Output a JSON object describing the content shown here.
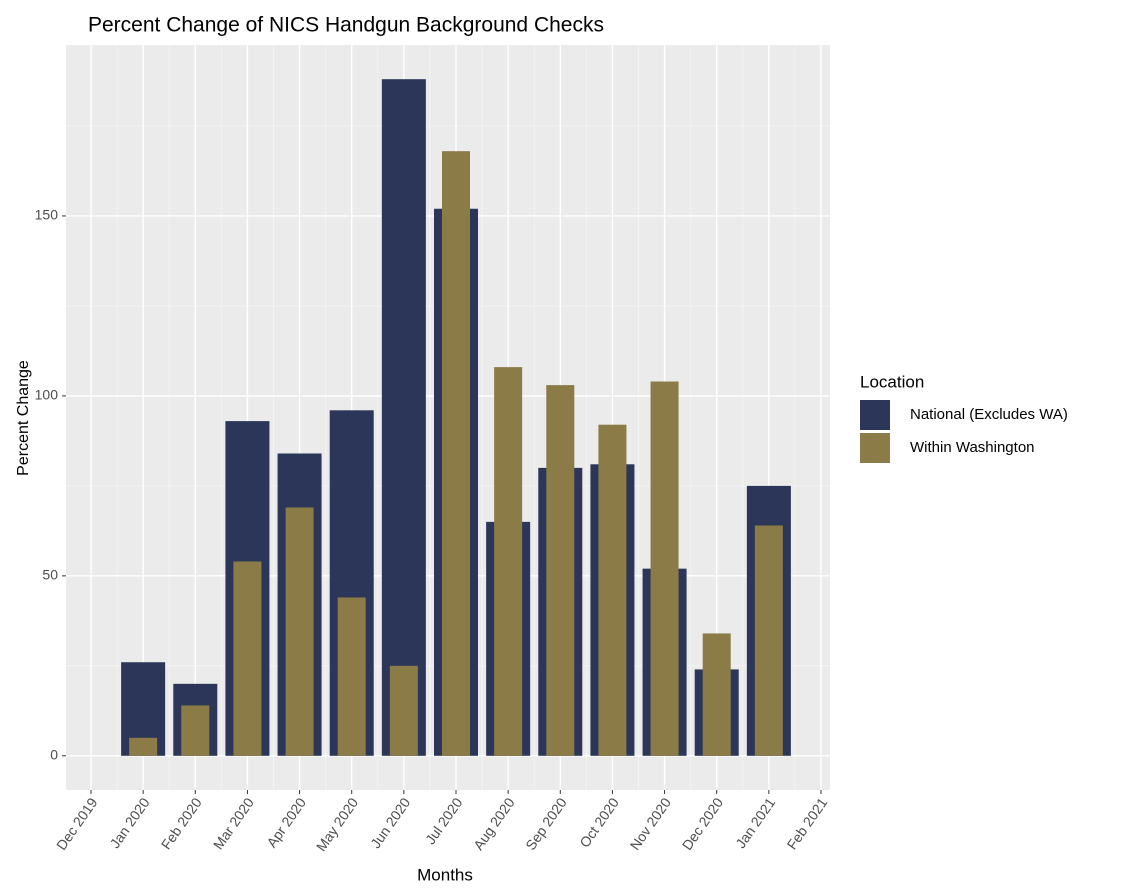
{
  "chart_data": {
    "type": "bar",
    "title": "Percent Change of NICS Handgun Background Checks",
    "x_label": "Months",
    "y_label": "Percent Change",
    "legend_title": "Location",
    "categories": [
      "Jan 2020",
      "Feb 2020",
      "Mar 2020",
      "Apr 2020",
      "May 2020",
      "Jun 2020",
      "Jul 2020",
      "Aug 2020",
      "Sep 2020",
      "Oct 2020",
      "Nov 2020",
      "Dec 2020",
      "Jan 2021"
    ],
    "xticks": [
      "Dec 2019",
      "Jan 2020",
      "Feb 2020",
      "Mar 2020",
      "Apr 2020",
      "May 2020",
      "Jun 2020",
      "Jul 2020",
      "Aug 2020",
      "Sep 2020",
      "Oct 2020",
      "Nov 2020",
      "Dec 2020",
      "Jan 2021",
      "Feb 2021"
    ],
    "series": [
      {
        "name": "National (Excludes WA)",
        "color": "#2b3659",
        "values": [
          26,
          20,
          93,
          84,
          96,
          188,
          152,
          65,
          80,
          81,
          52,
          24,
          75
        ]
      },
      {
        "name": "Within Washington",
        "color": "#8b7b46",
        "values": [
          5,
          14,
          54,
          69,
          44,
          25,
          168,
          108,
          103,
          92,
          104,
          34,
          64
        ]
      }
    ],
    "ylim": [
      -9.5,
      197.5
    ],
    "yticks": [
      0,
      50,
      100,
      150
    ],
    "grid": true
  }
}
